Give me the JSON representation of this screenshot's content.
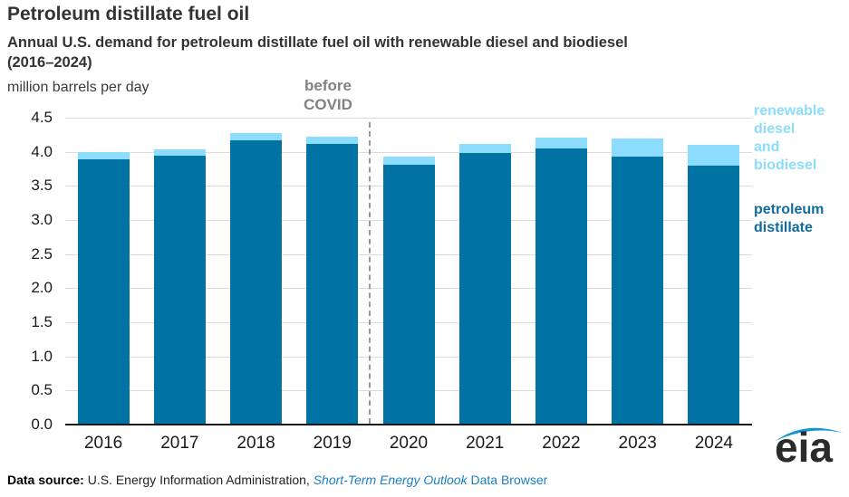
{
  "header": {
    "subtitle": "Annual U.S. demand for petroleum distillate fuel oil with renewable diesel and biodiesel\n(2016–2024)"
  },
  "legend": {
    "renewable": "renewable\ndiesel\nand\nbiodiesel",
    "petroleum": "petroleum\ndistillate"
  },
  "annotations": {
    "before_covid": "before COVID"
  },
  "chart_data": {
    "type": "bar",
    "stacked": true,
    "title": "Petroleum distillate fuel oil",
    "subtitle": "Annual U.S. demand for petroleum distillate fuel oil with renewable diesel and biodiesel (2016–2024)",
    "ylabel": "million barrels per day",
    "categories": [
      "2016",
      "2017",
      "2018",
      "2019",
      "2020",
      "2021",
      "2022",
      "2023",
      "2024"
    ],
    "series": [
      {
        "name": "petroleum distillate",
        "color": "#0072A3",
        "values": [
          3.88,
          3.93,
          4.16,
          4.1,
          3.79,
          3.97,
          4.03,
          3.92,
          3.78
        ]
      },
      {
        "name": "renewable diesel and biodiesel",
        "color": "#8BDCFD",
        "values": [
          0.1,
          0.09,
          0.1,
          0.11,
          0.12,
          0.13,
          0.16,
          0.26,
          0.31
        ]
      }
    ],
    "ylim": [
      0,
      4.5
    ],
    "ytick_step": 0.5,
    "grid": "horizontal",
    "legend_position": "right",
    "divider": {
      "after_category": "2019",
      "label": "before COVID"
    }
  },
  "footer": {
    "prefix": "Data source:",
    "org": " U.S. Energy Information Administration, ",
    "link_italic": "Short-Term Energy Outlook",
    "link_suffix": " Data Browser"
  },
  "logo": {
    "text": "eia"
  }
}
